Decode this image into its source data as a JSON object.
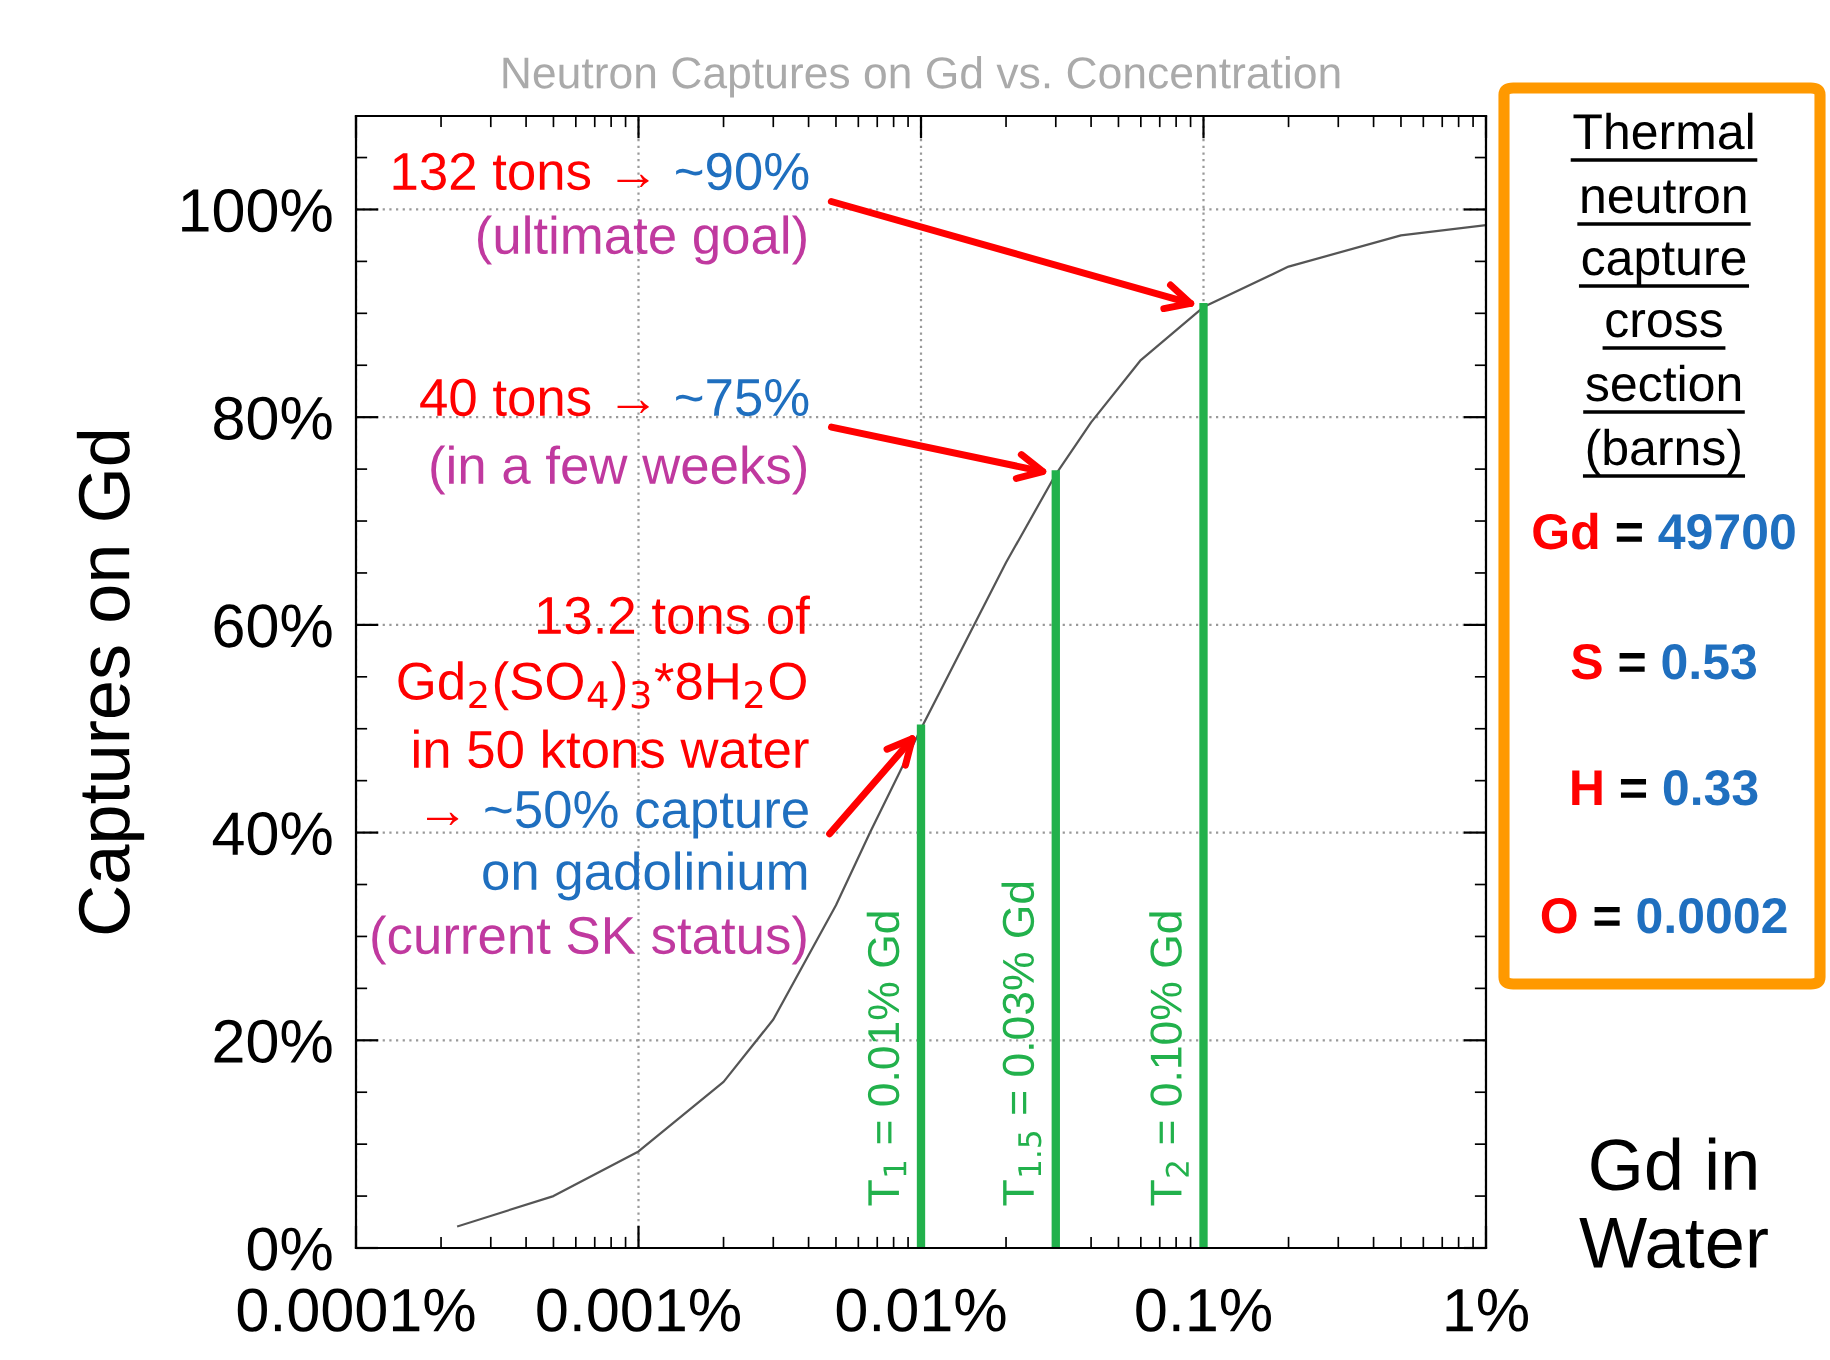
{
  "chart_data": {
    "type": "line",
    "title": "Neutron Captures on Gd vs. Concentration",
    "xlabel": "Gd in\nWater",
    "ylabel": "Captures on Gd",
    "x": [
      0.00023,
      0.0005,
      0.001,
      0.002,
      0.003,
      0.005,
      0.0066,
      0.01,
      0.02,
      0.03,
      0.04,
      0.06,
      0.1,
      0.2,
      0.5,
      1
    ],
    "series": [
      {
        "color": "#555555",
        "values": [
          2.1,
          5,
          9.3,
          16,
          22,
          33,
          40,
          50,
          66,
          74.5,
          79.5,
          85.5,
          90.6,
          94.5,
          97.5,
          98.5
        ]
      }
    ],
    "log": "x",
    "xlim": [
      0.0001,
      1
    ],
    "xticks": [
      {
        "value": 0.0001,
        "label": "0.0001%"
      },
      {
        "value": 0.001,
        "label": "0.001%"
      },
      {
        "value": 0.01,
        "label": "0.01%"
      },
      {
        "value": 0.1,
        "label": "0.1%"
      },
      {
        "value": 1,
        "label": "1%"
      }
    ],
    "ylim": [
      0,
      109
    ],
    "yticks": [
      {
        "value": 0,
        "label": "0%"
      },
      {
        "value": 20,
        "label": "20%"
      },
      {
        "value": 40,
        "label": "40%"
      },
      {
        "value": 60,
        "label": "60%"
      },
      {
        "value": 80,
        "label": "80%"
      },
      {
        "value": 100,
        "label": "100%"
      }
    ],
    "grid": true,
    "marker": "none",
    "line_style": "solid",
    "ref_lines": [
      {
        "axis": "x",
        "value": 0.01,
        "label": "T$_{1}$ = 0.01% Gd",
        "color": "#22b14c"
      },
      {
        "axis": "x",
        "value": 0.03,
        "label": "T$_{1.5}$ = 0.03% Gd",
        "color": "#22b14c"
      },
      {
        "axis": "x",
        "value": 0.1,
        "label": "T$_{2}$ = 0.10% Gd",
        "color": "#22b14c"
      }
    ],
    "annotations": [
      "132 tons →",
      {
        "text": "~90%",
        "x": 0.1,
        "y": 90.6
      },
      "(ultimate goal)",
      "40 tons →",
      {
        "text": "~75%",
        "x": 0.03,
        "y": 74.5
      },
      "(in a few weeks)",
      "13.2 tons of",
      "Gd$_{2}$(SO$_{4}$)$_{3}$*8H$_{2}$O",
      "in 50 ktons water",
      "→",
      {
        "text": "~50% capture",
        "x": 0.01,
        "y": 50
      },
      "on gadolinium",
      "(current SK status)",
      "Thermal",
      "neutron",
      "capture",
      "cross",
      "section",
      "(barns)",
      "Gd",
      "=",
      "49700",
      "S",
      "=",
      "0.53",
      "H",
      "=",
      "0.33",
      "O",
      "=",
      "0.0002"
    ]
  }
}
